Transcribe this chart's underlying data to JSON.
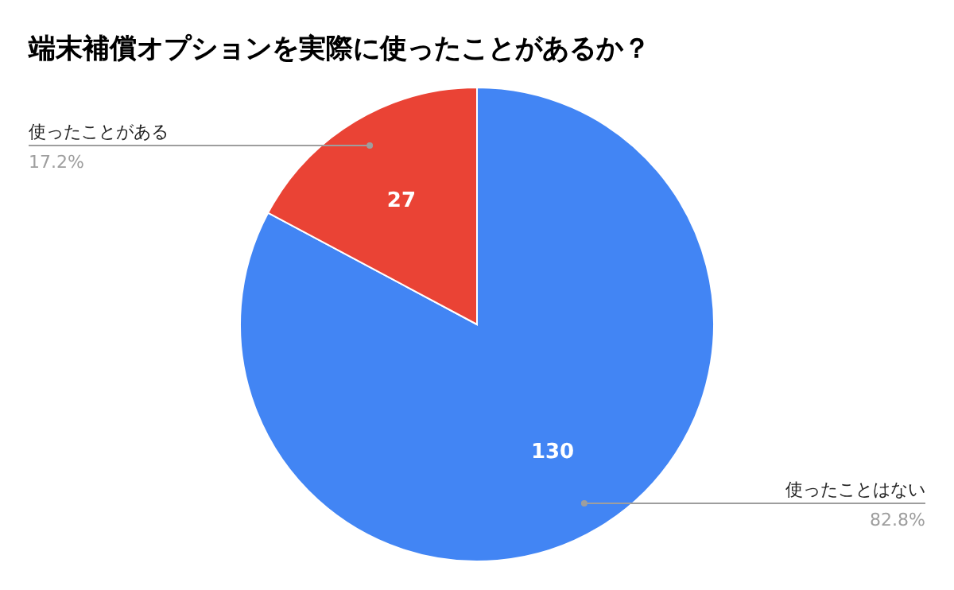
{
  "chart_data": {
    "type": "pie",
    "title": "端末補償オプションを実際に使ったことがあるか？",
    "categories": [
      "使ったことはない",
      "使ったことがある"
    ],
    "values": [
      130,
      27
    ],
    "colors": [
      "#4285f4",
      "#ea4335"
    ],
    "data_labels": true,
    "annotations": [
      "82.8%",
      "17.2%"
    ]
  }
}
